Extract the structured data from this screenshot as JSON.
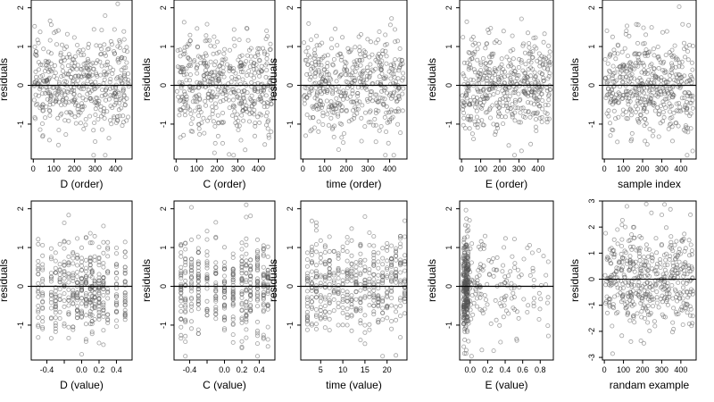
{
  "chart_data": [
    {
      "type": "scatter",
      "xlabel": "D (order)",
      "ylabel": "residuals",
      "xlim": [
        -10,
        480
      ],
      "ylim": [
        -1.9,
        2.2
      ],
      "xticks": [
        0,
        100,
        200,
        300,
        400
      ],
      "yticks": [
        -1,
        0,
        1,
        2
      ],
      "ref_line_y": 0,
      "dist": "uniform",
      "n": 460,
      "seed": 11
    },
    {
      "type": "scatter",
      "xlabel": "C (order)",
      "ylabel": "residuals",
      "xlim": [
        -10,
        480
      ],
      "ylim": [
        -1.9,
        2.2
      ],
      "xticks": [
        0,
        100,
        200,
        300,
        400
      ],
      "yticks": [
        -1,
        0,
        1,
        2
      ],
      "ref_line_y": 0,
      "dist": "uniform",
      "n": 460,
      "seed": 12
    },
    {
      "type": "scatter",
      "xlabel": "time (order)",
      "ylabel": "residuals",
      "xlim": [
        -10,
        480
      ],
      "ylim": [
        -1.9,
        2.2
      ],
      "xticks": [
        0,
        100,
        200,
        300,
        400
      ],
      "yticks": [
        -1,
        0,
        1,
        2
      ],
      "ref_line_y": 0,
      "dist": "uniform",
      "n": 460,
      "seed": 13
    },
    {
      "type": "scatter",
      "xlabel": "E (order)",
      "ylabel": "residuals",
      "xlim": [
        -10,
        480
      ],
      "ylim": [
        -1.9,
        2.2
      ],
      "xticks": [
        0,
        100,
        200,
        300,
        400
      ],
      "yticks": [
        -1,
        0,
        1,
        2
      ],
      "ref_line_y": 0,
      "dist": "uniform",
      "n": 460,
      "seed": 14
    },
    {
      "type": "scatter",
      "xlabel": "sample index",
      "ylabel": "residuals",
      "xlim": [
        -10,
        480
      ],
      "ylim": [
        -1.9,
        2.2
      ],
      "xticks": [
        0,
        100,
        200,
        300,
        400
      ],
      "yticks": [
        -1,
        0,
        1,
        2
      ],
      "ref_line_y": 0,
      "dist": "uniform",
      "n": 460,
      "seed": 15
    },
    {
      "type": "scatter",
      "xlabel": "D (value)",
      "ylabel": "residuals",
      "xlim": [
        -0.58,
        0.58
      ],
      "ylim": [
        -1.9,
        2.2
      ],
      "xticks": [
        -0.4,
        -0.2,
        0.0,
        0.2,
        0.4
      ],
      "xtick_labels": [
        "-0.4",
        "",
        "0.0",
        "0.2",
        "0.4"
      ],
      "yticks": [
        -1,
        0,
        1,
        2
      ],
      "ref_line_y": 0,
      "dist": "discrete",
      "levels": [
        -0.5,
        -0.45,
        -0.35,
        -0.3,
        -0.25,
        -0.2,
        -0.15,
        -0.1,
        -0.05,
        0.0,
        0.05,
        0.1,
        0.12,
        0.15,
        0.2,
        0.25,
        0.3,
        0.4,
        0.5
      ],
      "n": 420,
      "seed": 21
    },
    {
      "type": "scatter",
      "xlabel": "C (value)",
      "ylabel": "residuals",
      "xlim": [
        -0.58,
        0.58
      ],
      "ylim": [
        -1.9,
        2.2
      ],
      "xticks": [
        -0.4,
        -0.2,
        0.0,
        0.2,
        0.4
      ],
      "xtick_labels": [
        "-0.4",
        "",
        "0.0",
        "0.2",
        "0.4"
      ],
      "yticks": [
        -1,
        0,
        1,
        2
      ],
      "ref_line_y": 0,
      "dist": "discrete",
      "levels": [
        -0.5,
        -0.45,
        -0.38,
        -0.3,
        -0.2,
        -0.1,
        0.0,
        0.1,
        0.2,
        0.25,
        0.3,
        0.38,
        0.45,
        0.5
      ],
      "n": 420,
      "seed": 22
    },
    {
      "type": "scatter",
      "xlabel": "time (value)",
      "ylabel": "residuals",
      "xlim": [
        0.5,
        24.5
      ],
      "ylim": [
        -1.9,
        2.2
      ],
      "xticks": [
        5,
        10,
        15,
        20
      ],
      "yticks": [
        -1,
        0,
        1,
        2
      ],
      "ref_line_y": 0,
      "dist": "discrete",
      "levels": [
        2,
        3,
        4,
        5,
        6,
        7,
        8,
        9,
        10,
        11,
        12,
        13,
        14,
        15,
        16,
        17,
        18,
        19,
        20,
        21,
        22,
        23,
        24
      ],
      "n": 440,
      "seed": 23
    },
    {
      "type": "scatter",
      "xlabel": "E (value)",
      "ylabel": "residuals",
      "xlim": [
        -0.12,
        0.95
      ],
      "ylim": [
        -1.9,
        2.2
      ],
      "xticks": [
        0.0,
        0.2,
        0.4,
        0.6,
        0.8
      ],
      "xtick_labels": [
        "0.0",
        "0.2",
        "0.4",
        "0.6",
        "0.8"
      ],
      "yticks": [
        -1,
        0,
        1,
        2
      ],
      "ref_line_y": 0,
      "dist": "skewed",
      "n": 440,
      "seed": 24
    },
    {
      "type": "scatter",
      "xlabel": "randam example",
      "ylabel": "residuals",
      "xlim": [
        -10,
        480
      ],
      "ylim": [
        -3.1,
        3.0
      ],
      "xticks": [
        0,
        100,
        200,
        300,
        400
      ],
      "yticks": [
        -3,
        -2,
        -1,
        0,
        1,
        2,
        3
      ],
      "ref_line_y": 0,
      "dist": "normal",
      "n": 460,
      "seed": 31
    }
  ]
}
